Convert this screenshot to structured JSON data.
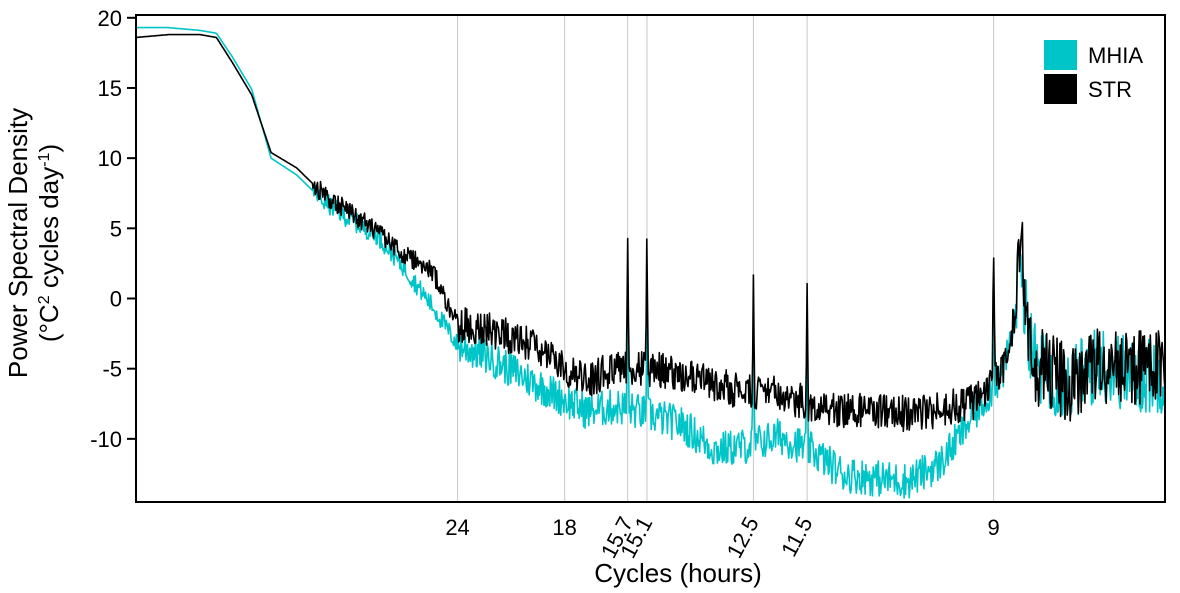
{
  "chart_data": {
    "type": "line",
    "title": "",
    "xlabel": "Cycles (hours)",
    "ylabel_line1": "Power Spectral Density",
    "ylabel_line2_prefix": "(°C",
    "ylabel_line2_sup1": "2",
    "ylabel_line2_middle": " cycles day",
    "ylabel_line2_sup2": "-1",
    "ylabel_line2_suffix": ")",
    "ylim": [
      -14.5,
      20.2
    ],
    "xlim_frequency_cycles_per_day": [
      0.0,
      3.2
    ],
    "y_ticks": [
      {
        "value": 20,
        "label": "20"
      },
      {
        "value": 15,
        "label": "15"
      },
      {
        "value": 10,
        "label": "10"
      },
      {
        "value": 5,
        "label": "5"
      },
      {
        "value": 0,
        "label": "0"
      },
      {
        "value": -5,
        "label": "-5"
      },
      {
        "value": -10,
        "label": "-10"
      }
    ],
    "x_ticks": [
      {
        "frequency": 1.0,
        "label": "24",
        "rotated": false
      },
      {
        "frequency": 1.333,
        "label": "18",
        "rotated": false
      },
      {
        "frequency": 1.529,
        "label": "15.7",
        "rotated": true
      },
      {
        "frequency": 1.589,
        "label": "15.1",
        "rotated": true
      },
      {
        "frequency": 1.92,
        "label": "12.5",
        "rotated": true
      },
      {
        "frequency": 2.087,
        "label": "11.5",
        "rotated": true
      },
      {
        "frequency": 2.667,
        "label": "9",
        "rotated": false
      }
    ],
    "reference_lines_frequency": [
      1.0,
      1.333,
      1.529,
      1.589,
      1.92,
      2.087,
      2.667
    ],
    "legend": {
      "position": "top-right",
      "entries": [
        {
          "name": "MHIA",
          "color": "#00c5c8"
        },
        {
          "name": "STR",
          "color": "#000000"
        }
      ]
    },
    "series": [
      {
        "name": "STR",
        "color": "#000000",
        "frequency": [
          0.0,
          0.1,
          0.2,
          0.25,
          0.3,
          0.36,
          0.42,
          0.5,
          0.58,
          0.66,
          0.75,
          0.83,
          0.92,
          1.0,
          1.1,
          1.2,
          1.3,
          1.4,
          1.5,
          1.6,
          1.7,
          1.8,
          1.9,
          2.0,
          2.1,
          2.2,
          2.3,
          2.4,
          2.5,
          2.6,
          2.7,
          2.75,
          2.8,
          2.9,
          3.0,
          3.1,
          3.2
        ],
        "values": [
          18.6,
          18.8,
          18.8,
          18.6,
          16.8,
          14.5,
          10.4,
          9.3,
          7.5,
          6.2,
          4.8,
          3.2,
          2.0,
          -1.8,
          -2.2,
          -3.0,
          -4.5,
          -5.8,
          -4.8,
          -5.0,
          -5.5,
          -6.2,
          -6.7,
          -6.8,
          -7.5,
          -7.9,
          -8.0,
          -8.2,
          -8.0,
          -7.4,
          -5.0,
          0.5,
          -4.8,
          -6.0,
          -4.6,
          -5.0,
          -4.8
        ]
      },
      {
        "name": "MHIA",
        "color": "#00c5c8",
        "frequency": [
          0.0,
          0.1,
          0.2,
          0.25,
          0.3,
          0.36,
          0.42,
          0.5,
          0.58,
          0.66,
          0.75,
          0.83,
          0.92,
          1.0,
          1.1,
          1.2,
          1.3,
          1.4,
          1.5,
          1.6,
          1.7,
          1.8,
          1.9,
          2.0,
          2.1,
          2.2,
          2.3,
          2.4,
          2.5,
          2.6,
          2.7,
          2.75,
          2.8,
          2.9,
          3.0,
          3.1,
          3.2
        ],
        "values": [
          19.3,
          19.3,
          19.1,
          18.9,
          17.2,
          14.9,
          10.0,
          8.8,
          7.0,
          5.7,
          4.5,
          2.3,
          -0.5,
          -3.3,
          -4.2,
          -5.5,
          -6.8,
          -8.0,
          -7.7,
          -8.3,
          -9.0,
          -10.8,
          -10.5,
          -9.8,
          -10.8,
          -12.5,
          -12.8,
          -13.0,
          -11.8,
          -8.5,
          -5.2,
          0.5,
          -4.8,
          -6.2,
          -4.5,
          -5.6,
          -5.4
        ]
      }
    ]
  }
}
